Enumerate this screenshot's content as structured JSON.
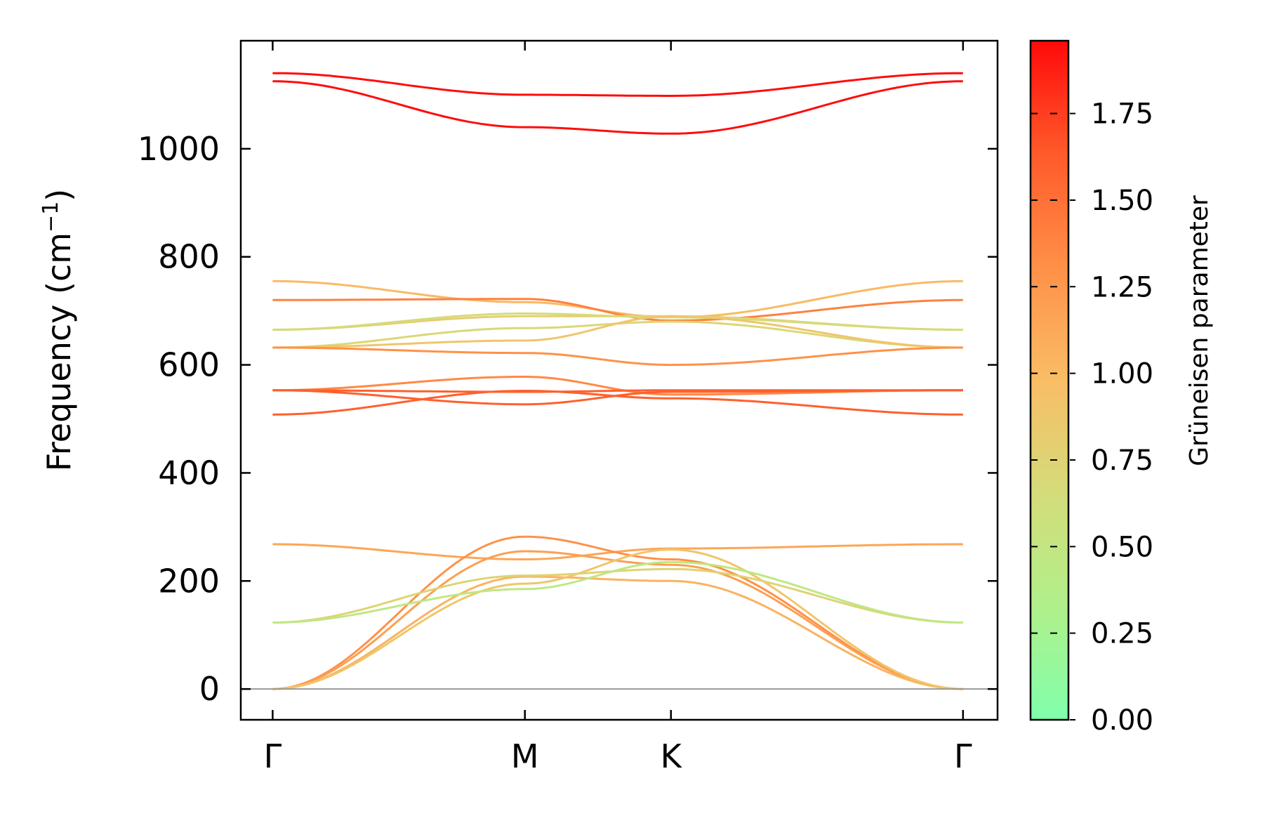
{
  "chart_data": {
    "type": "line",
    "xlabel": "",
    "ylabel": "Frequency (cm",
    "ylabel_sup": "−1",
    "ylabel_close": ")",
    "ylim": [
      -57,
      1200
    ],
    "xlim": [
      -0.12,
      2.73
    ],
    "yticks": [
      0,
      200,
      400,
      600,
      800,
      1000
    ],
    "ytick_labels": [
      "0",
      "200",
      "400",
      "600",
      "800",
      "1000"
    ],
    "x_points": [
      {
        "label": "Γ",
        "x": 0
      },
      {
        "label": "M",
        "x": 0.95
      },
      {
        "label": "K",
        "x": 1.5
      },
      {
        "label": "Γ",
        "x": 2.6
      }
    ],
    "zero_line": 0,
    "colorbar": {
      "label": "Grüneisen parameter",
      "range": [
        0,
        1.96
      ],
      "ticks": [
        0.0,
        0.25,
        0.5,
        0.75,
        1.0,
        1.25,
        1.5,
        1.75
      ],
      "tick_labels": [
        "0.00",
        "0.25",
        "0.50",
        "0.75",
        "1.00",
        "1.25",
        "1.50",
        "1.75"
      ],
      "colors": [
        "#80ffab",
        "#b0f08a",
        "#d4dc7a",
        "#f9bd66",
        "#ff9048",
        "#ff5a2a",
        "#ff0a0a"
      ]
    },
    "series": [
      {
        "values": [
          1140,
          1100,
          1098,
          1140
        ],
        "color_value": 1.95
      },
      {
        "values": [
          1125,
          1040,
          1028,
          1125
        ],
        "color_value": 1.95
      },
      {
        "values": [
          755,
          716,
          688,
          755
        ],
        "color_value": 1.0
      },
      {
        "values": [
          720,
          722,
          682,
          720
        ],
        "color_value": 1.4
      },
      {
        "values": [
          665,
          690,
          690,
          665
        ],
        "color_value": 0.8
      },
      {
        "values": [
          665,
          695,
          688,
          665
        ],
        "color_value": 0.65
      },
      {
        "values": [
          632,
          668,
          680,
          632
        ],
        "color_value": 0.7
      },
      {
        "values": [
          632,
          645,
          690,
          632
        ],
        "color_value": 0.9
      },
      {
        "values": [
          632,
          622,
          600,
          632
        ],
        "color_value": 1.3
      },
      {
        "values": [
          553,
          578,
          545,
          553
        ],
        "color_value": 1.35
      },
      {
        "values": [
          553,
          550,
          553,
          553
        ],
        "color_value": 1.6
      },
      {
        "values": [
          553,
          527,
          550,
          553
        ],
        "color_value": 1.6
      },
      {
        "values": [
          508,
          552,
          538,
          508
        ],
        "color_value": 1.6
      },
      {
        "values": [
          268,
          240,
          260,
          268
        ],
        "color_value": 1.15
      },
      {
        "values": [
          0,
          282,
          240,
          0
        ],
        "color_value": 1.3
      },
      {
        "values": [
          0,
          255,
          230,
          0
        ],
        "color_value": 1.2
      },
      {
        "values": [
          0,
          208,
          200,
          0
        ],
        "color_value": 1.05
      },
      {
        "values": [
          0,
          195,
          258,
          0
        ],
        "color_value": 0.9
      },
      {
        "values": [
          123,
          210,
          222,
          123
        ],
        "color_value": 0.75
      },
      {
        "values": [
          123,
          185,
          235,
          123
        ],
        "color_value": 0.45
      }
    ]
  }
}
